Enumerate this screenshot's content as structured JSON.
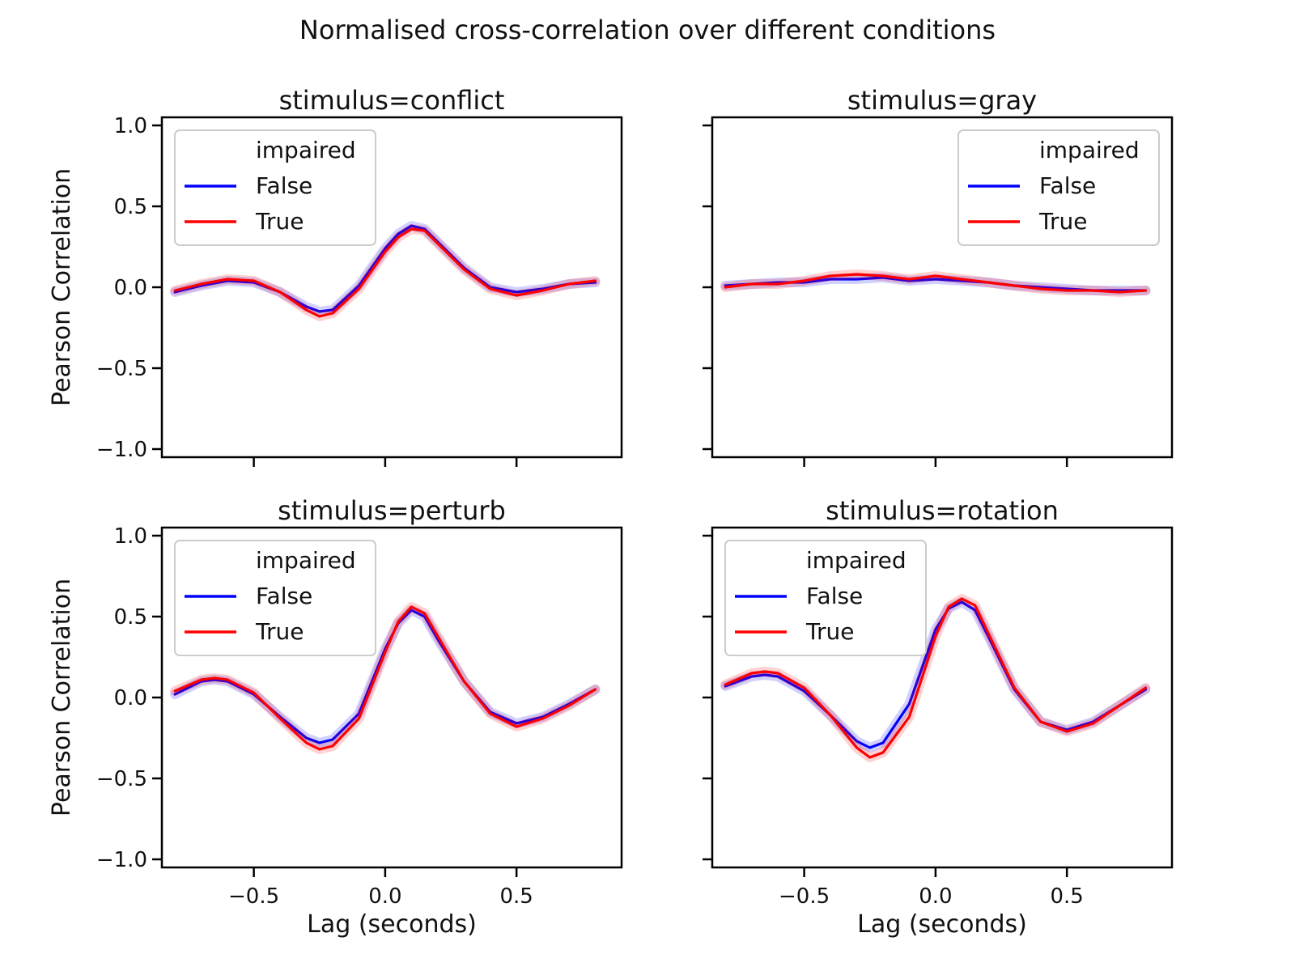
{
  "chart_data": {
    "type": "line",
    "title": "Normalised cross-correlation over different conditions",
    "xlabel": "Lag (seconds)",
    "ylabel": "Pearson Correlation",
    "xlim": [
      -0.85,
      0.9
    ],
    "ylim": [
      -1.05,
      1.05
    ],
    "xticks": [
      -0.5,
      0.0,
      0.5
    ],
    "xtick_labels": [
      "−0.5",
      "0.0",
      "0.5"
    ],
    "yticks": [
      -1.0,
      -0.5,
      0.0,
      0.5,
      1.0
    ],
    "ytick_labels": [
      "−1.0",
      "−0.5",
      "0.0",
      "0.5",
      "1.0"
    ],
    "grid": false,
    "legend": {
      "title": "impaired",
      "entries": [
        "False",
        "True"
      ],
      "colors": [
        "#0000ff",
        "#ff0000"
      ]
    },
    "panels": [
      {
        "title": "stimulus=conflict",
        "legend_position": "top-left",
        "x": [
          -0.8,
          -0.7,
          -0.6,
          -0.5,
          -0.4,
          -0.3,
          -0.25,
          -0.2,
          -0.1,
          0.0,
          0.05,
          0.1,
          0.15,
          0.2,
          0.3,
          0.4,
          0.5,
          0.6,
          0.7,
          0.8
        ],
        "series": [
          {
            "name": "False",
            "color": "#0000ff",
            "values": [
              -0.03,
              0.01,
              0.04,
              0.03,
              -0.03,
              -0.12,
              -0.15,
              -0.14,
              0.01,
              0.24,
              0.33,
              0.38,
              0.36,
              0.28,
              0.12,
              0.0,
              -0.03,
              -0.01,
              0.02,
              0.03
            ]
          },
          {
            "name": "True",
            "color": "#ff0000",
            "values": [
              -0.02,
              0.02,
              0.05,
              0.04,
              -0.03,
              -0.14,
              -0.18,
              -0.16,
              -0.01,
              0.22,
              0.31,
              0.36,
              0.35,
              0.27,
              0.11,
              -0.01,
              -0.05,
              -0.02,
              0.02,
              0.04
            ]
          }
        ]
      },
      {
        "title": "stimulus=gray",
        "legend_position": "top-right",
        "x": [
          -0.8,
          -0.7,
          -0.6,
          -0.5,
          -0.4,
          -0.3,
          -0.2,
          -0.1,
          0.0,
          0.1,
          0.2,
          0.3,
          0.4,
          0.5,
          0.6,
          0.7,
          0.8
        ],
        "series": [
          {
            "name": "False",
            "color": "#0000ff",
            "values": [
              0.01,
              0.02,
              0.03,
              0.03,
              0.05,
              0.05,
              0.06,
              0.04,
              0.05,
              0.04,
              0.03,
              0.01,
              0.0,
              -0.01,
              -0.02,
              -0.02,
              -0.02
            ]
          },
          {
            "name": "True",
            "color": "#ff0000",
            "values": [
              0.0,
              0.02,
              0.02,
              0.04,
              0.07,
              0.08,
              0.07,
              0.05,
              0.07,
              0.05,
              0.03,
              0.01,
              -0.01,
              -0.02,
              -0.02,
              -0.03,
              -0.02
            ]
          }
        ]
      },
      {
        "title": "stimulus=perturb",
        "legend_position": "top-left",
        "x": [
          -0.8,
          -0.7,
          -0.65,
          -0.6,
          -0.5,
          -0.4,
          -0.3,
          -0.25,
          -0.2,
          -0.1,
          0.0,
          0.05,
          0.1,
          0.15,
          0.2,
          0.3,
          0.4,
          0.5,
          0.6,
          0.7,
          0.8
        ],
        "series": [
          {
            "name": "False",
            "color": "#0000ff",
            "values": [
              0.02,
              0.1,
              0.11,
              0.1,
              0.02,
              -0.12,
              -0.25,
              -0.28,
              -0.26,
              -0.1,
              0.3,
              0.46,
              0.54,
              0.5,
              0.36,
              0.1,
              -0.09,
              -0.16,
              -0.12,
              -0.04,
              0.05
            ]
          },
          {
            "name": "True",
            "color": "#ff0000",
            "values": [
              0.04,
              0.11,
              0.12,
              0.11,
              0.03,
              -0.13,
              -0.28,
              -0.32,
              -0.3,
              -0.13,
              0.28,
              0.47,
              0.56,
              0.52,
              0.38,
              0.1,
              -0.1,
              -0.18,
              -0.13,
              -0.05,
              0.05
            ]
          }
        ]
      },
      {
        "title": "stimulus=rotation",
        "legend_position": "top-left",
        "x": [
          -0.8,
          -0.7,
          -0.65,
          -0.6,
          -0.5,
          -0.4,
          -0.3,
          -0.25,
          -0.2,
          -0.1,
          0.0,
          0.05,
          0.1,
          0.15,
          0.2,
          0.3,
          0.4,
          0.5,
          0.6,
          0.7,
          0.8
        ],
        "series": [
          {
            "name": "False",
            "color": "#0000ff",
            "values": [
              0.07,
              0.13,
              0.14,
              0.13,
              0.04,
              -0.11,
              -0.27,
              -0.31,
              -0.28,
              -0.04,
              0.42,
              0.55,
              0.59,
              0.54,
              0.38,
              0.05,
              -0.15,
              -0.2,
              -0.15,
              -0.05,
              0.05
            ]
          },
          {
            "name": "True",
            "color": "#ff0000",
            "values": [
              0.08,
              0.15,
              0.16,
              0.15,
              0.06,
              -0.11,
              -0.31,
              -0.37,
              -0.34,
              -0.12,
              0.38,
              0.56,
              0.61,
              0.57,
              0.4,
              0.06,
              -0.15,
              -0.21,
              -0.16,
              -0.05,
              0.06
            ]
          }
        ]
      }
    ]
  }
}
